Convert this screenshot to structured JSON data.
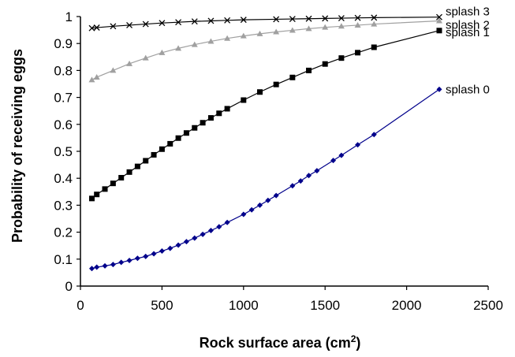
{
  "chart_data": {
    "type": "line",
    "title": "",
    "xlabel": "Rock surface area (cm",
    "xlabel_sup": "2",
    "xlabel_end": ")",
    "ylabel": "Probability of receiving eggs",
    "xlim": [
      0,
      2500
    ],
    "ylim": [
      0,
      1
    ],
    "x_ticks": [
      "0",
      "500",
      "1000",
      "1500",
      "2000",
      "2500"
    ],
    "y_ticks": [
      "0",
      "0.1",
      "0.2",
      "0.3",
      "0.4",
      "0.5",
      "0.6",
      "0.7",
      "0.8",
      "0.9",
      "1"
    ],
    "grid": false,
    "legend": "direct labels at line ends",
    "series": [
      {
        "name": "splash 0",
        "color": "#00008b",
        "marker": "diamond",
        "x": [
          70,
          100,
          150,
          200,
          250,
          300,
          350,
          400,
          450,
          500,
          550,
          600,
          650,
          700,
          750,
          800,
          850,
          900,
          1000,
          1050,
          1100,
          1150,
          1200,
          1300,
          1350,
          1400,
          1450,
          1550,
          1600,
          1700,
          1800,
          2200
        ],
        "y": [
          0.065,
          0.07,
          0.075,
          0.08,
          0.088,
          0.095,
          0.103,
          0.11,
          0.12,
          0.13,
          0.14,
          0.152,
          0.165,
          0.178,
          0.192,
          0.206,
          0.22,
          0.236,
          0.266,
          0.283,
          0.3,
          0.318,
          0.336,
          0.372,
          0.39,
          0.41,
          0.428,
          0.466,
          0.485,
          0.524,
          0.562,
          0.73
        ]
      },
      {
        "name": "splash 1",
        "color": "#000000",
        "marker": "square",
        "x": [
          70,
          100,
          150,
          200,
          250,
          300,
          350,
          400,
          450,
          500,
          550,
          600,
          650,
          700,
          750,
          800,
          850,
          900,
          1000,
          1100,
          1200,
          1300,
          1400,
          1500,
          1600,
          1700,
          1800,
          2200
        ],
        "y": [
          0.325,
          0.34,
          0.36,
          0.381,
          0.402,
          0.423,
          0.444,
          0.465,
          0.487,
          0.508,
          0.528,
          0.549,
          0.568,
          0.587,
          0.606,
          0.624,
          0.641,
          0.658,
          0.69,
          0.72,
          0.748,
          0.774,
          0.8,
          0.824,
          0.846,
          0.866,
          0.886,
          0.948
        ]
      },
      {
        "name": "splash 2",
        "color": "#a0a0a0",
        "marker": "triangle",
        "x": [
          70,
          100,
          200,
          300,
          400,
          500,
          600,
          700,
          800,
          900,
          1000,
          1100,
          1200,
          1300,
          1400,
          1500,
          1600,
          1700,
          1800,
          2200
        ],
        "y": [
          0.765,
          0.775,
          0.8,
          0.825,
          0.846,
          0.866,
          0.882,
          0.896,
          0.908,
          0.919,
          0.928,
          0.936,
          0.943,
          0.949,
          0.955,
          0.96,
          0.964,
          0.968,
          0.972,
          0.984
        ]
      },
      {
        "name": "splash 3",
        "color": "#000000",
        "marker": "x",
        "x": [
          70,
          100,
          200,
          300,
          400,
          500,
          600,
          700,
          800,
          900,
          1000,
          1200,
          1300,
          1400,
          1500,
          1600,
          1700,
          1800,
          2200
        ],
        "y": [
          0.957,
          0.959,
          0.964,
          0.968,
          0.972,
          0.976,
          0.979,
          0.982,
          0.984,
          0.986,
          0.988,
          0.99,
          0.991,
          0.992,
          0.993,
          0.994,
          0.995,
          0.996,
          0.998
        ]
      }
    ]
  }
}
